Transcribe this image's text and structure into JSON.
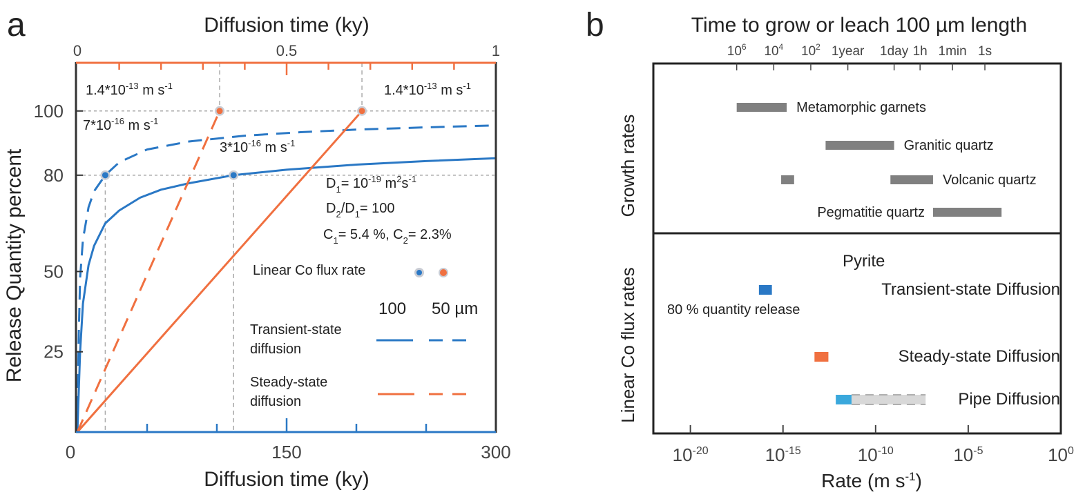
{
  "figure": {
    "panels": [
      "a",
      "b"
    ]
  },
  "chart_data": [
    {
      "panel": "a",
      "type": "line",
      "title": "",
      "top_axis": {
        "label": "Diffusion time (ky)",
        "range": [
          0,
          1
        ],
        "tick_labels": [
          "0",
          "0.5",
          "1"
        ],
        "ticks": [
          0,
          0.1,
          0.2,
          0.3,
          0.4,
          0.5,
          0.6,
          0.7,
          0.8,
          0.9,
          1.0
        ],
        "color": "#f07040",
        "applies_to": "Steady-state diffusion"
      },
      "bottom_axis": {
        "label": "Diffusion time (ky)",
        "range": [
          0,
          300
        ],
        "tick_labels": [
          "0",
          "150",
          "300"
        ],
        "ticks": [
          0,
          50,
          100,
          150,
          200,
          250,
          300
        ],
        "color": "#2a78c5",
        "applies_to": "Transient-state diffusion"
      },
      "ylabel": "Release Quantity percent",
      "y_tick_labels": [
        "25",
        "50",
        "80",
        "100"
      ],
      "y_ticks": [
        25,
        50,
        80,
        100
      ],
      "ylim": [
        0,
        115
      ],
      "grid": false,
      "reference_lines": {
        "y": [
          80,
          100
        ]
      },
      "series": [
        {
          "name": "Transient-state diffusion 100 µm",
          "axis": "bottom",
          "style": "solid",
          "color": "#2a78c5",
          "x": [
            0,
            2,
            4,
            8,
            12,
            20,
            30,
            45,
            60,
            80,
            112,
            150,
            200,
            250,
            300
          ],
          "y": [
            0,
            25,
            40,
            52,
            58,
            65,
            69,
            73,
            75.5,
            77.5,
            80,
            81.7,
            83.3,
            84.4,
            85.3
          ]
        },
        {
          "name": "Transient-state diffusion 50 µm",
          "axis": "bottom",
          "style": "dashed",
          "color": "#2a78c5",
          "x": [
            0,
            1,
            2,
            4,
            8,
            12,
            20,
            30,
            50,
            80,
            120,
            160,
            200,
            250,
            300
          ],
          "y": [
            0,
            30,
            48,
            60,
            70,
            75,
            80,
            84,
            88,
            90.5,
            92.3,
            93.4,
            94.2,
            94.9,
            95.5
          ]
        },
        {
          "name": "Steady-state diffusion 100 µm",
          "axis": "top",
          "style": "solid",
          "color": "#f07040",
          "x": [
            0,
            0.68
          ],
          "y": [
            0,
            100
          ]
        },
        {
          "name": "Steady-state diffusion 50 µm",
          "axis": "top",
          "style": "dashed",
          "color": "#f07040",
          "x": [
            0,
            0.34
          ],
          "y": [
            0,
            100
          ]
        }
      ],
      "markers": [
        {
          "series": "Transient-state diffusion 50 µm",
          "axis": "bottom",
          "x": 20,
          "y": 80,
          "color": "#2a78c5",
          "label": "7*10-16 m s-1"
        },
        {
          "series": "Transient-state diffusion 100 µm",
          "axis": "bottom",
          "x": 112,
          "y": 80,
          "color": "#2a78c5",
          "label": "3*10-16 m s-1"
        },
        {
          "series": "Steady-state diffusion 50 µm",
          "axis": "top",
          "x": 0.34,
          "y": 100,
          "color": "#f07040",
          "label": "1.4*10-13 m s-1"
        },
        {
          "series": "Steady-state diffusion 100 µm",
          "axis": "top",
          "x": 0.68,
          "y": 100,
          "color": "#f07040",
          "label": "1.4*10-13 m s-1"
        }
      ],
      "annotations": {
        "rate_top_left": {
          "base": "1.4*10",
          "exp": "-13",
          "unit": " m s",
          "unit_exp": "-1"
        },
        "rate_top_right": {
          "base": "1.4*10",
          "exp": "-13",
          "unit": " m s",
          "unit_exp": "-1"
        },
        "rate_50_transient": {
          "base": "7*10",
          "exp": "-16",
          "unit": " m s",
          "unit_exp": "-1"
        },
        "rate_100_transient": {
          "base": "3*10",
          "exp": "-16",
          "unit": " m s",
          "unit_exp": "-1"
        },
        "d1": {
          "pre": "D",
          "sub": "1",
          "mid": "= 10",
          "exp": "-19",
          "unit": " m",
          "unit_exp": "2",
          "tail": "s",
          "tail_exp": "-1"
        },
        "ratio": {
          "a": "D",
          "a_sub": "2",
          "b": "/D",
          "b_sub": "1",
          "tail": "= 100"
        },
        "conc": {
          "a": "C",
          "a_sub": "1",
          "b": "= 5.4 %,  C",
          "b_sub": "2",
          "tail": "= 2.3%"
        },
        "flux_label": "Linear Co flux rate"
      },
      "legend": {
        "position": "bottom-right",
        "header": [
          "100",
          "50 µm"
        ],
        "entries": [
          {
            "label_line1": "Transient-state",
            "label_line2": "diffusion",
            "color": "#2a78c5"
          },
          {
            "label_line1": "Steady-state",
            "label_line2": "diffusion",
            "color": "#f07040"
          }
        ]
      }
    },
    {
      "panel": "b",
      "type": "bar",
      "orientation": "horizontal-range",
      "title": "Time to grow or leach 100 µm length",
      "xlabel": {
        "text": "Rate (m s",
        "exp": "-1",
        "tail": ")"
      },
      "x_scale": "log10",
      "xlim_log10": [
        -22,
        0
      ],
      "x_ticks_log10": [
        -20,
        -15,
        -10,
        -5,
        0
      ],
      "x_tick_labels": [
        {
          "base": "10",
          "exp": "-20"
        },
        {
          "base": "10",
          "exp": "-15"
        },
        {
          "base": "10",
          "exp": "-10"
        },
        {
          "base": "10",
          "exp": "-5"
        },
        {
          "base": "10",
          "exp": "0"
        }
      ],
      "top_ticks": [
        {
          "label": "10",
          "exp": "6",
          "log10": -17.5
        },
        {
          "label": "10",
          "exp": "4",
          "log10": -15.5
        },
        {
          "label": "10",
          "exp": "2",
          "log10": -13.5
        },
        {
          "label": "1year",
          "exp": "",
          "log10": -11.5
        },
        {
          "label": "1day",
          "exp": "",
          "log10": -9.0
        },
        {
          "label": "1h",
          "exp": "",
          "log10": -7.6
        },
        {
          "label": "1min",
          "exp": "",
          "log10": -5.85
        },
        {
          "label": "1s",
          "exp": "",
          "log10": -4.1
        }
      ],
      "sections": [
        {
          "ylabel": "Growth rates"
        },
        {
          "ylabel": "Linear Co flux rates"
        }
      ],
      "growth_bars": [
        {
          "label": "Metamorphic garnets",
          "ranges_log10": [
            [
              -17.5,
              -14.8
            ]
          ],
          "color": "#808080",
          "label_side": "right"
        },
        {
          "label": "Granitic quartz",
          "ranges_log10": [
            [
              -12.7,
              -9.0
            ]
          ],
          "color": "#808080",
          "label_side": "right"
        },
        {
          "label": "Volcanic quartz",
          "ranges_log10": [
            [
              -15.1,
              -14.4
            ],
            [
              -9.2,
              -6.9
            ]
          ],
          "color": "#808080",
          "label_side": "right"
        },
        {
          "label": "Pegmatitie quartz",
          "ranges_log10": [
            [
              -6.9,
              -3.2
            ]
          ],
          "color": "#808080",
          "label_side": "left"
        }
      ],
      "flux_header": "Pyrite",
      "flux_bars": [
        {
          "label": "Transient-state Diffusion",
          "ranges_log10": [
            [
              -16.3,
              -15.6
            ]
          ],
          "color": "#2a78c5",
          "note": "80 % quantity release"
        },
        {
          "label": "Steady-state Diffusion",
          "ranges_log10": [
            [
              -13.3,
              -12.55
            ]
          ],
          "color": "#f07040"
        },
        {
          "label": "Pipe Diffusion",
          "ranges_log10": [
            [
              -12.15,
              -11.3
            ]
          ],
          "color": "#3aa8dc",
          "extension_log10": [
            -11.3,
            -7.3
          ],
          "extension_color": "#d8d8d8"
        }
      ]
    }
  ]
}
